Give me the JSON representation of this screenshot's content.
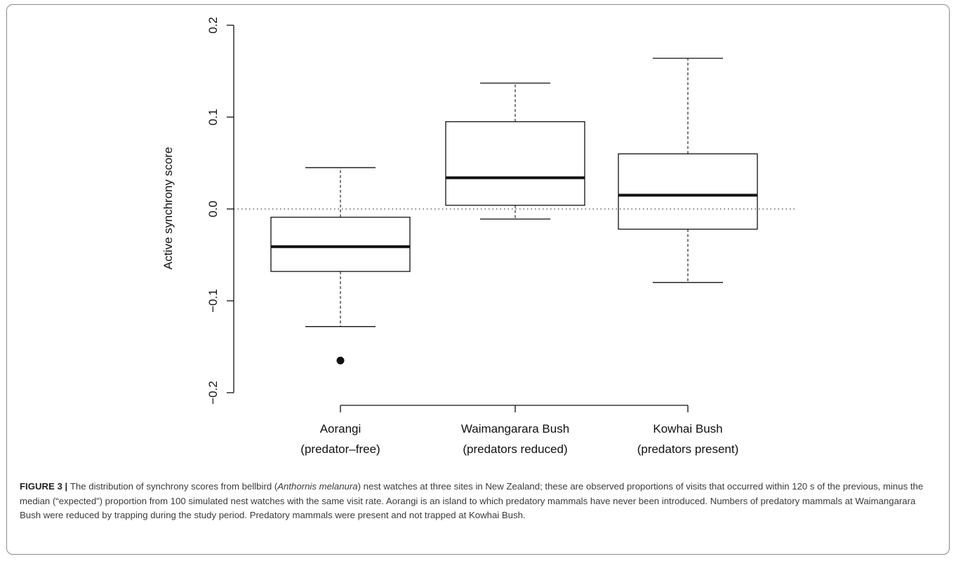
{
  "chart_data": {
    "type": "boxplot",
    "ylabel": "Active synchrony score",
    "ylim": [
      -0.2,
      0.2
    ],
    "yticks": [
      "-0.2",
      "-0.1",
      "0.0",
      "0.1",
      "0.2"
    ],
    "reference_line": {
      "y": 0.0,
      "style": "dotted"
    },
    "categories": [
      {
        "line1": "Aorangi",
        "line2": "(predator–free)"
      },
      {
        "line1": "Waimangarara Bush",
        "line2": "(predators reduced)"
      },
      {
        "line1": "Kowhai Bush",
        "line2": "(predators present)"
      }
    ],
    "boxes": [
      {
        "whisker_low": -0.128,
        "q1": -0.068,
        "median": -0.041,
        "q3": -0.009,
        "whisker_high": 0.045,
        "outliers": [
          -0.165
        ]
      },
      {
        "whisker_low": -0.011,
        "q1": 0.004,
        "median": 0.034,
        "q3": 0.095,
        "whisker_high": 0.137,
        "outliers": []
      },
      {
        "whisker_low": -0.08,
        "q1": -0.022,
        "median": 0.015,
        "q3": 0.06,
        "whisker_high": 0.164,
        "outliers": []
      }
    ]
  },
  "caption": {
    "label": "FIGURE 3",
    "separator": " | ",
    "text_before_species": "The distribution of synchrony scores from bellbird (",
    "species": "Anthornis melanura",
    "text_after_species": ") nest watches at three sites in New Zealand; these are observed proportions of visits that occurred within 120 s of the previous, minus the median (“expected”) proportion from 100 simulated nest watches with the same visit rate. Aorangi is an island to which predatory mammals have never been introduced. Numbers of predatory mammals at Waimangarara Bush were reduced by trapping during the study period. Predatory mammals were present and not trapped at Kowhai Bush."
  }
}
